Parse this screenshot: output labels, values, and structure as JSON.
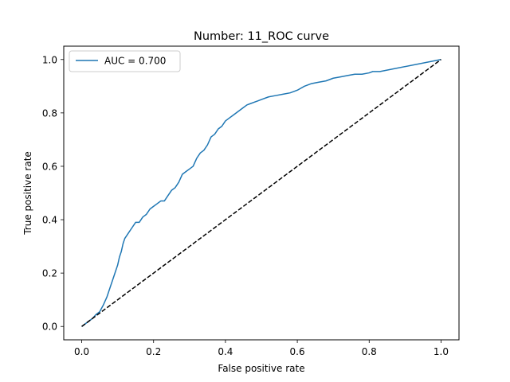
{
  "chart_data": {
    "type": "line",
    "title": "Number: 11_ROC curve",
    "xlabel": "False positive rate",
    "ylabel": "True positive rate",
    "xlim": [
      -0.05,
      1.05
    ],
    "ylim": [
      -0.05,
      1.05
    ],
    "xticks": [
      "0.0",
      "0.2",
      "0.4",
      "0.6",
      "0.8",
      "1.0"
    ],
    "yticks": [
      "0.0",
      "0.2",
      "0.4",
      "0.6",
      "0.8",
      "1.0"
    ],
    "xtick_values": [
      0,
      0.2,
      0.4,
      0.6,
      0.8,
      1.0
    ],
    "ytick_values": [
      0,
      0.2,
      0.4,
      0.6,
      0.8,
      1.0
    ],
    "grid": false,
    "legend": {
      "placement": "top-left"
    },
    "series": [
      {
        "name": "AUC = 0.700",
        "color": "#1f77b4",
        "style": "solid",
        "x": [
          0.0,
          0.01,
          0.02,
          0.03,
          0.04,
          0.05,
          0.06,
          0.07,
          0.075,
          0.08,
          0.085,
          0.09,
          0.095,
          0.1,
          0.105,
          0.11,
          0.115,
          0.12,
          0.125,
          0.13,
          0.14,
          0.15,
          0.16,
          0.17,
          0.18,
          0.19,
          0.2,
          0.21,
          0.22,
          0.23,
          0.24,
          0.25,
          0.26,
          0.27,
          0.28,
          0.29,
          0.3,
          0.31,
          0.32,
          0.33,
          0.34,
          0.35,
          0.36,
          0.37,
          0.38,
          0.39,
          0.4,
          0.41,
          0.42,
          0.43,
          0.44,
          0.45,
          0.46,
          0.47,
          0.48,
          0.49,
          0.5,
          0.52,
          0.54,
          0.56,
          0.58,
          0.6,
          0.62,
          0.64,
          0.66,
          0.68,
          0.7,
          0.72,
          0.74,
          0.76,
          0.78,
          0.8,
          0.81,
          0.82,
          0.83,
          1.0
        ],
        "y": [
          0.0,
          0.01,
          0.02,
          0.03,
          0.045,
          0.055,
          0.08,
          0.11,
          0.13,
          0.15,
          0.17,
          0.19,
          0.21,
          0.23,
          0.26,
          0.28,
          0.31,
          0.33,
          0.34,
          0.35,
          0.37,
          0.39,
          0.39,
          0.41,
          0.42,
          0.44,
          0.45,
          0.46,
          0.47,
          0.47,
          0.49,
          0.51,
          0.52,
          0.54,
          0.57,
          0.58,
          0.59,
          0.6,
          0.63,
          0.65,
          0.66,
          0.68,
          0.71,
          0.72,
          0.74,
          0.75,
          0.77,
          0.78,
          0.79,
          0.8,
          0.81,
          0.82,
          0.83,
          0.835,
          0.84,
          0.845,
          0.85,
          0.86,
          0.865,
          0.87,
          0.875,
          0.885,
          0.9,
          0.91,
          0.915,
          0.92,
          0.93,
          0.935,
          0.94,
          0.945,
          0.945,
          0.95,
          0.955,
          0.955,
          0.955,
          1.0
        ]
      },
      {
        "color": "#000000",
        "style": "dashed",
        "x": [
          0.0,
          1.0
        ],
        "y": [
          0.0,
          1.0
        ]
      }
    ]
  }
}
